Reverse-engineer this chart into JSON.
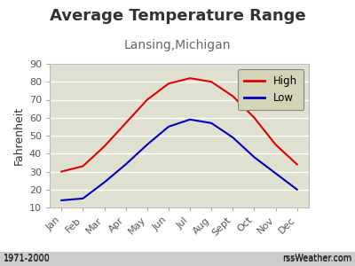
{
  "title": "Average Temperature Range",
  "subtitle": "Lansing,Michigan",
  "ylabel": "Fahrenheit",
  "months": [
    "Jan",
    "Feb",
    "Mar",
    "Apr",
    "May",
    "Jun",
    "Jul",
    "Aug",
    "Sept",
    "Oct",
    "Nov",
    "Dec"
  ],
  "high": [
    30,
    33,
    44,
    57,
    70,
    79,
    82,
    80,
    72,
    60,
    45,
    34
  ],
  "low": [
    14,
    15,
    24,
    34,
    45,
    55,
    59,
    57,
    49,
    38,
    29,
    20
  ],
  "high_color": "#dd0000",
  "low_color": "#0000bb",
  "ylim": [
    10,
    90
  ],
  "yticks": [
    10,
    20,
    30,
    40,
    50,
    60,
    70,
    80,
    90
  ],
  "bg_color": "#e0e0d0",
  "outer_bg": "#ffffff",
  "title_fontsize": 13,
  "subtitle_fontsize": 10,
  "ylabel_fontsize": 9,
  "tick_fontsize": 8,
  "legend_bg": "#d4d4b8",
  "footer_left": "1971-2000",
  "footer_right": "rssWeather.com"
}
